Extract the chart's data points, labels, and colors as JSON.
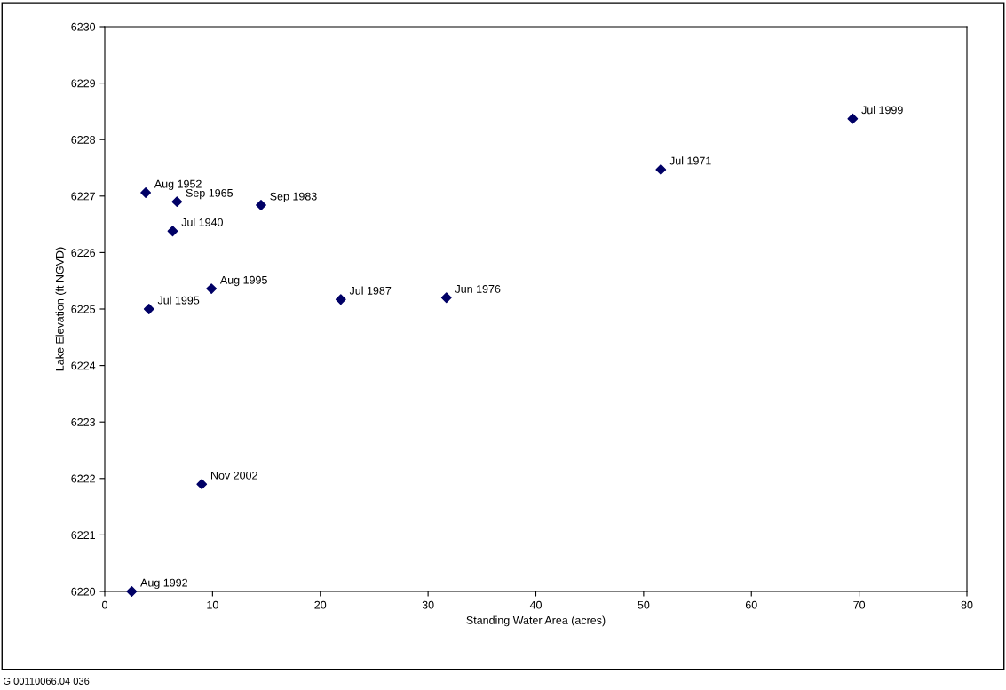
{
  "chart_data": {
    "type": "scatter",
    "xlabel": "Standing Water Area (acres)",
    "ylabel": "Lake Elevation (ft NGVD)",
    "x": [
      69.4,
      51.6,
      3.8,
      6.7,
      14.5,
      6.3,
      9.9,
      4.1,
      21.9,
      31.7,
      9.0,
      2.5
    ],
    "series": [
      {
        "color": "#000066",
        "values": [
          6228.37,
          6227.47,
          6227.06,
          6226.9,
          6226.84,
          6226.38,
          6225.36,
          6225.0,
          6225.17,
          6225.2,
          6221.9,
          6220.0
        ]
      }
    ],
    "marker": "diamond",
    "grid": false,
    "legend": false,
    "xlim": [
      0,
      80
    ],
    "xticks": [
      0,
      10,
      20,
      30,
      40,
      50,
      60,
      70,
      80
    ],
    "ylim": [
      6220,
      6230
    ],
    "yticks": [
      6220,
      6221,
      6222,
      6223,
      6224,
      6225,
      6226,
      6227,
      6228,
      6229,
      6230
    ],
    "annotations": [
      {
        "text": "Jul 1999",
        "x": 69.4,
        "y": 6228.37
      },
      {
        "text": "Jul 1971",
        "x": 51.6,
        "y": 6227.47
      },
      {
        "text": "Aug 1952",
        "x": 3.8,
        "y": 6227.06
      },
      {
        "text": "Sep 1965",
        "x": 6.7,
        "y": 6226.9
      },
      {
        "text": "Sep 1983",
        "x": 14.5,
        "y": 6226.84
      },
      {
        "text": "Jul 1940",
        "x": 6.3,
        "y": 6226.38
      },
      {
        "text": "Aug 1995",
        "x": 9.9,
        "y": 6225.36
      },
      {
        "text": "Jul 1995",
        "x": 4.1,
        "y": 6225.0
      },
      {
        "text": "Jul 1987",
        "x": 21.9,
        "y": 6225.17
      },
      {
        "text": "Jun 1976",
        "x": 31.7,
        "y": 6225.2
      },
      {
        "text": "Nov 2002",
        "x": 9.0,
        "y": 6221.9
      },
      {
        "text": "Aug 1992",
        "x": 2.5,
        "y": 6220.0
      },
      "G 00110066.04 036"
    ]
  }
}
